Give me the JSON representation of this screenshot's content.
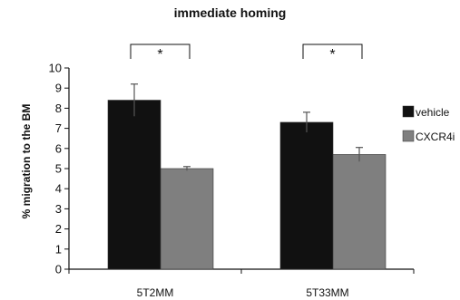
{
  "chart_data": {
    "type": "bar",
    "title": "immediate homing",
    "xlabel": "",
    "ylabel": "% migration to the BM",
    "ylim": [
      0,
      10
    ],
    "yticks": [
      0,
      1,
      2,
      3,
      4,
      5,
      6,
      7,
      8,
      9,
      10
    ],
    "categories": [
      "5T2MM",
      "5T33MM"
    ],
    "series": [
      {
        "name": "vehicle",
        "values": [
          8.4,
          7.3
        ],
        "errors": [
          0.8,
          0.5
        ],
        "color": "#111111"
      },
      {
        "name": "CXCR4i",
        "values": [
          5.0,
          5.7
        ],
        "errors": [
          0.1,
          0.35
        ],
        "color": "#7f7f7f"
      }
    ],
    "significance": [
      "*",
      "*"
    ],
    "legend_position": "right",
    "grid": false
  }
}
